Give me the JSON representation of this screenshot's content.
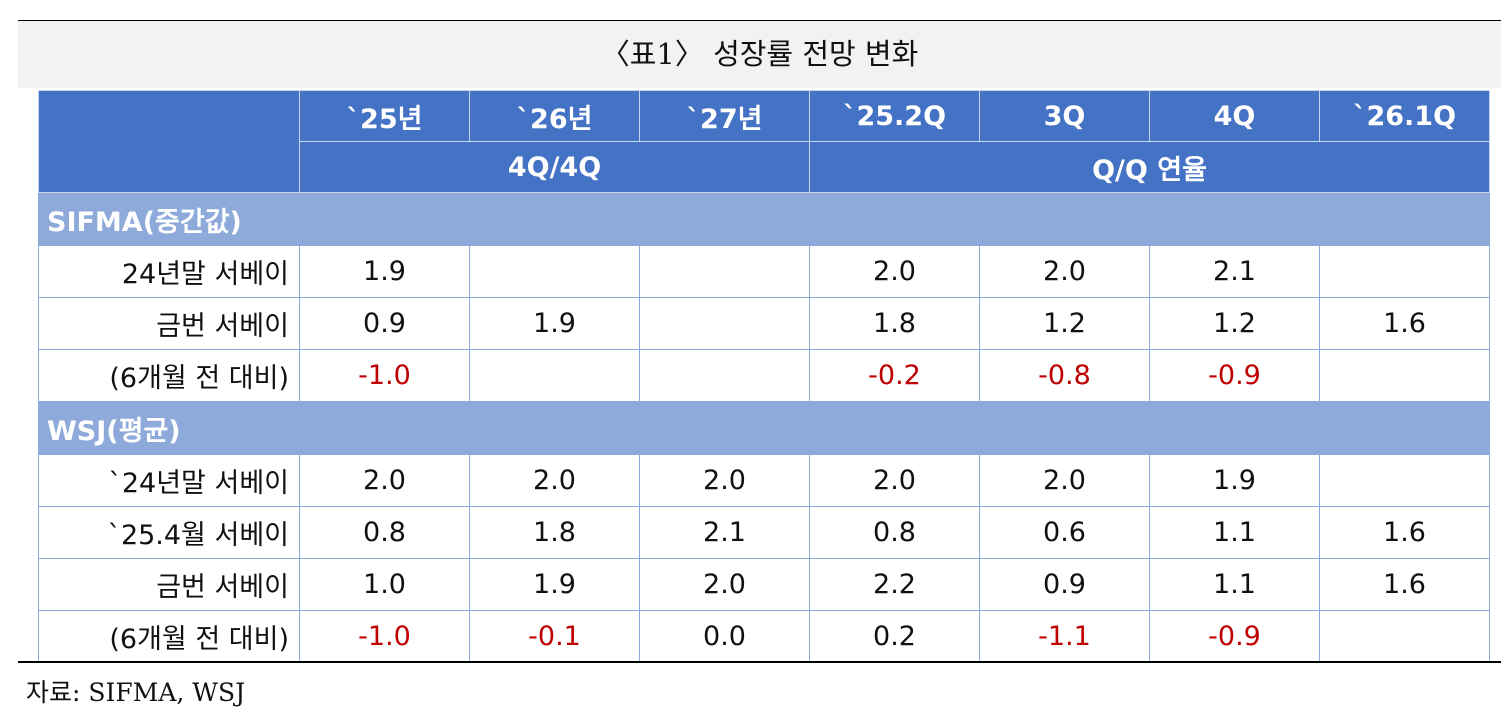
{
  "title": "〈표1〉 성장률 전망 변화",
  "table": {
    "columns": [
      "`25년",
      "`26년",
      "`27년",
      "`25.2Q",
      "3Q",
      "4Q",
      "`26.1Q"
    ],
    "groups": [
      "4Q/4Q",
      "Q/Q 연율"
    ],
    "sections": [
      {
        "name": "SIFMA(중간값)",
        "rows": [
          {
            "label": "24년말 서베이",
            "values": [
              "1.9",
              null,
              null,
              "2.0",
              "2.0",
              "2.1",
              null
            ]
          },
          {
            "label": "금번 서베이",
            "values": [
              "0.9",
              "1.9",
              null,
              "1.8",
              "1.2",
              "1.2",
              "1.6"
            ]
          },
          {
            "label": "(6개월 전 대비)",
            "values": [
              "-1.0",
              null,
              null,
              "-0.2",
              "-0.8",
              "-0.9",
              null
            ]
          }
        ]
      },
      {
        "name": "WSJ(평균)",
        "rows": [
          {
            "label": "`24년말 서베이",
            "values": [
              "2.0",
              "2.0",
              "2.0",
              "2.0",
              "2.0",
              "1.9",
              null
            ]
          },
          {
            "label": "`25.4월 서베이",
            "values": [
              "0.8",
              "1.8",
              "2.1",
              "0.8",
              "0.6",
              "1.1",
              "1.6"
            ]
          },
          {
            "label": "금번 서베이",
            "values": [
              "1.0",
              "1.9",
              "2.0",
              "2.2",
              "0.9",
              "1.1",
              "1.6"
            ]
          },
          {
            "label": "(6개월 전 대비)",
            "values": [
              "-1.0",
              "-0.1",
              "0.0",
              "0.2",
              "-1.1",
              "-0.9",
              null
            ]
          }
        ]
      }
    ]
  },
  "source": "자료: SIFMA, WSJ"
}
